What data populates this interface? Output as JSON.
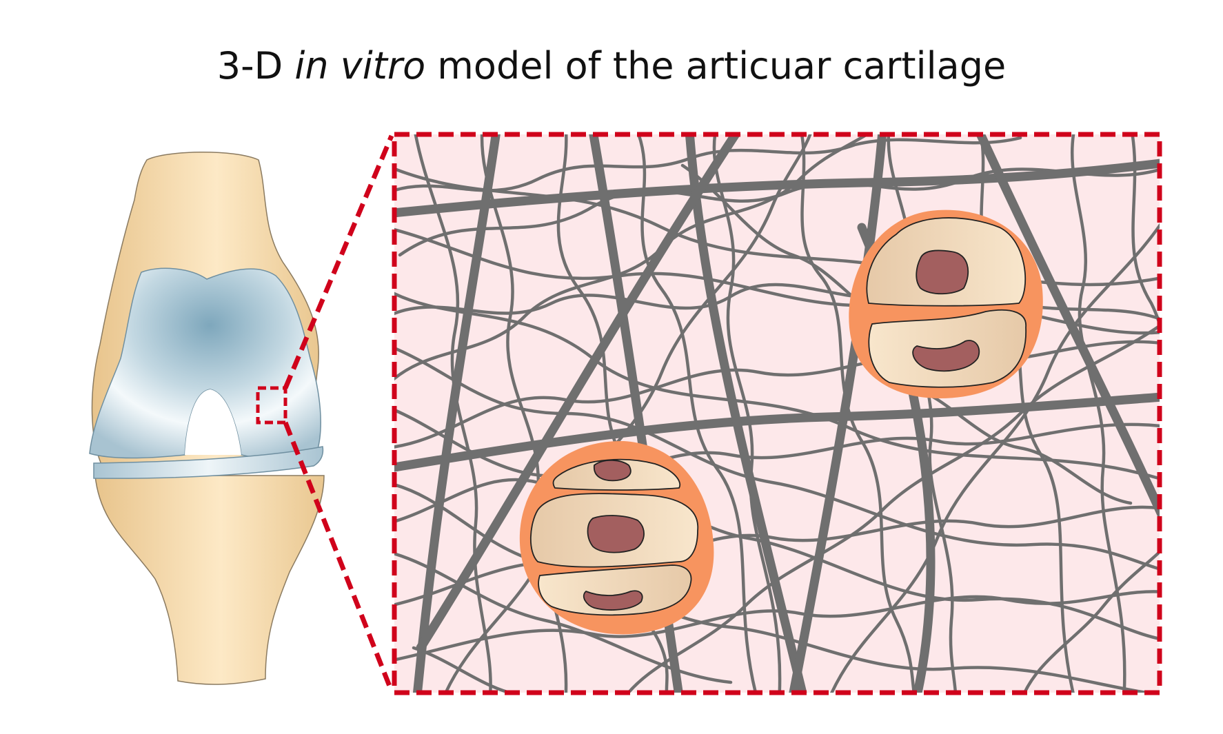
{
  "title": {
    "part1": "3-D ",
    "italic": "in vitro",
    "part2": " model of the articuar cartilage"
  },
  "colors": {
    "bone_light": "#fbe7c4",
    "bone_dark": "#e8c48c",
    "cartilage_light": "#f4f9fb",
    "cartilage_dark": "#7ea7bc",
    "highlight_red": "#d0021b",
    "matrix_background": "#fde8ea",
    "fiber_gray": "#6f6f6f",
    "pericellular_orange": "#f7945f",
    "cell_beige": "#f1dcc0",
    "nucleus": "#a35f5f"
  },
  "diagram": {
    "left_illustration": "knee-joint",
    "zoom_indicator": "dashed-square",
    "right_panel": "cartilage-matrix-zoom",
    "chondron_count": 2
  }
}
